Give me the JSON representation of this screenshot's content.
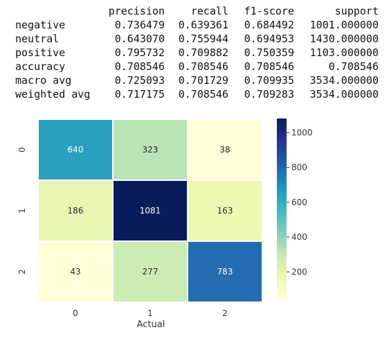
{
  "report": {
    "headers": [
      "precision",
      "recall",
      "f1-score",
      "support"
    ],
    "rows": [
      {
        "label": "negative",
        "values": [
          "0.736479",
          "0.639361",
          "0.684492",
          "1001.000000"
        ]
      },
      {
        "label": "neutral",
        "values": [
          "0.643070",
          "0.755944",
          "0.694953",
          "1430.000000"
        ]
      },
      {
        "label": "positive",
        "values": [
          "0.795732",
          "0.709882",
          "0.750359",
          "1103.000000"
        ]
      },
      {
        "label": "accuracy",
        "values": [
          "0.708546",
          "0.708546",
          "0.708546",
          "0.708546"
        ]
      },
      {
        "label": "macro avg",
        "values": [
          "0.725093",
          "0.701729",
          "0.709935",
          "3534.000000"
        ]
      },
      {
        "label": "weighted avg",
        "values": [
          "0.717175",
          "0.708546",
          "0.709283",
          "3534.000000"
        ]
      }
    ]
  },
  "chart_data": {
    "type": "heatmap",
    "x_categories": [
      "0",
      "1",
      "2"
    ],
    "y_categories": [
      "0",
      "1",
      "2"
    ],
    "values": [
      [
        640,
        323,
        38
      ],
      [
        186,
        1081,
        163
      ],
      [
        43,
        277,
        783
      ]
    ],
    "xlabel": "Actual",
    "ylabel": "",
    "colormap": "YlGnBu",
    "colorbar": {
      "ticks": [
        200,
        400,
        600,
        800,
        1000
      ],
      "range": [
        38,
        1081
      ]
    },
    "cell_border_color": "#ffffff",
    "grid": false
  }
}
